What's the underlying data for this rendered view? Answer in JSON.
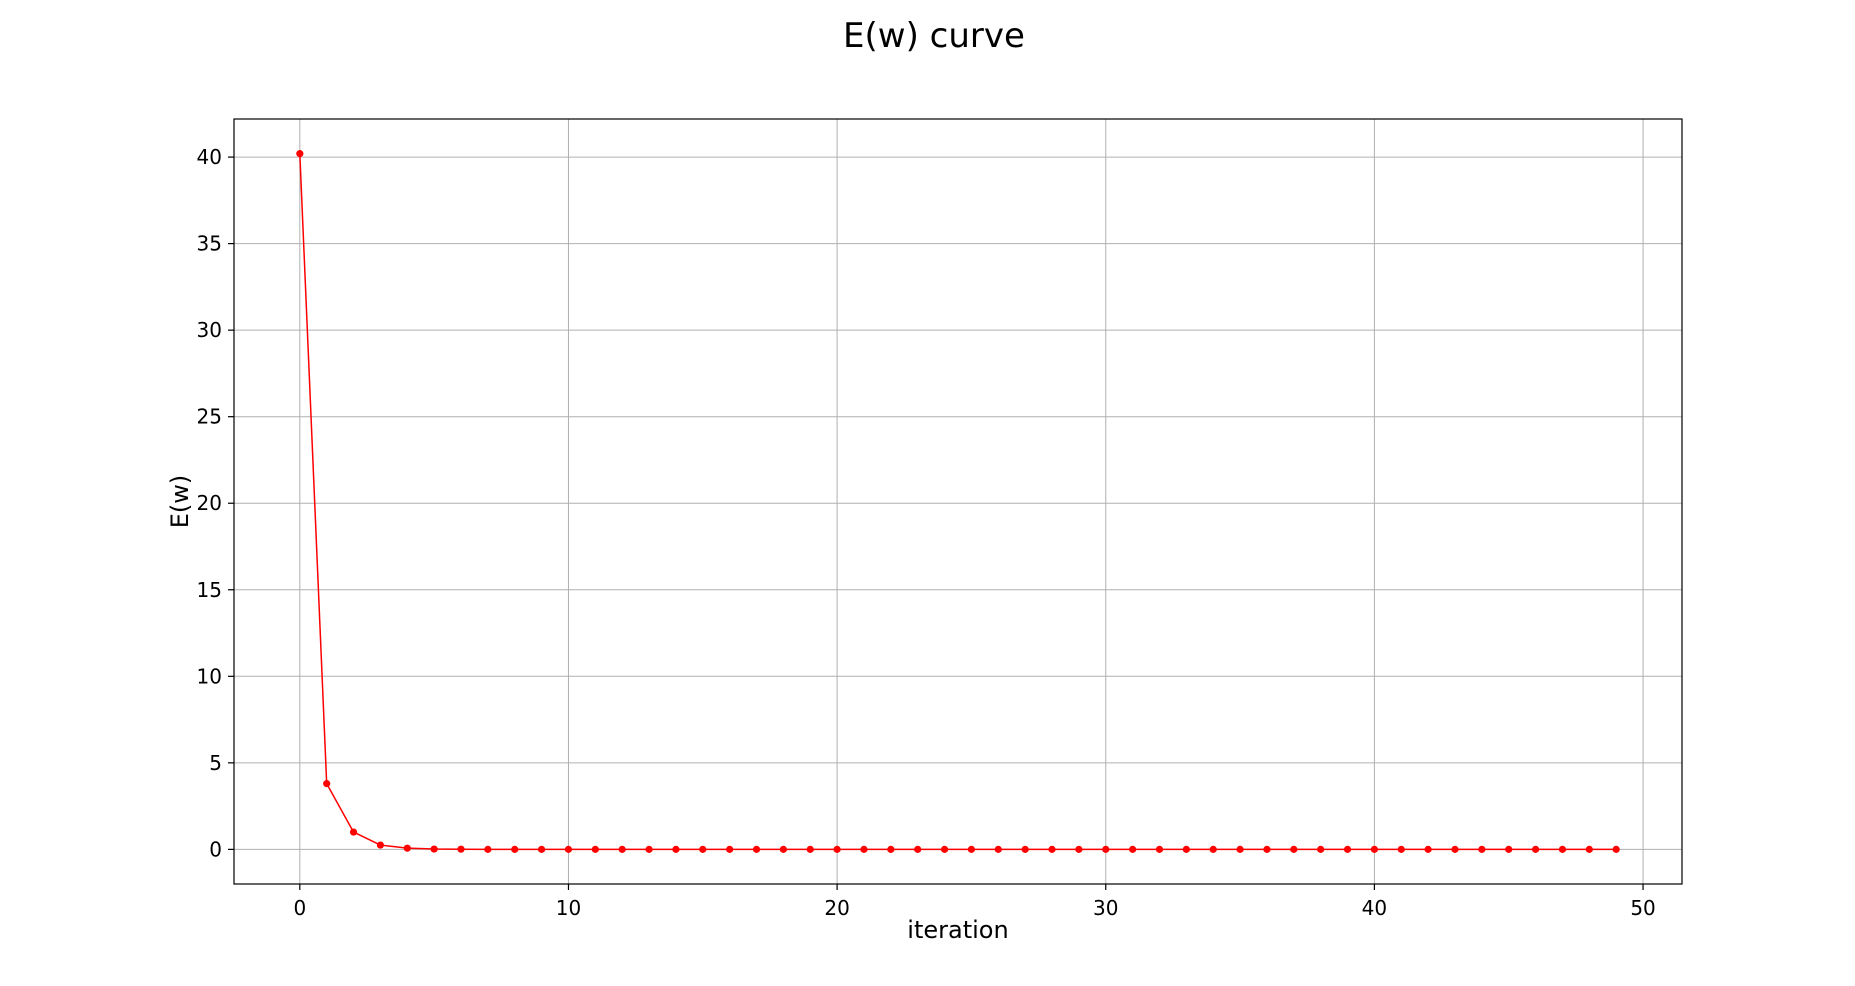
{
  "chart_data": {
    "type": "line",
    "title": "E(w) curve",
    "xlabel": "iteration",
    "ylabel": "E(w)",
    "xlim": [
      -2.45,
      51.45
    ],
    "ylim": [
      -2.0,
      42.2
    ],
    "xticks": [
      0,
      10,
      20,
      30,
      40,
      50
    ],
    "yticks": [
      0,
      5,
      10,
      15,
      20,
      25,
      30,
      35,
      40
    ],
    "grid": true,
    "legend": "none",
    "series": [
      {
        "color": "#ff0000",
        "marker": "circle",
        "x": [
          0,
          1,
          2,
          3,
          4,
          5,
          6,
          7,
          8,
          9,
          10,
          11,
          12,
          13,
          14,
          15,
          16,
          17,
          18,
          19,
          20,
          21,
          22,
          23,
          24,
          25,
          26,
          27,
          28,
          29,
          30,
          31,
          32,
          33,
          34,
          35,
          36,
          37,
          38,
          39,
          40,
          41,
          42,
          43,
          44,
          45,
          46,
          47,
          48,
          49
        ],
        "y": [
          40.2,
          3.8,
          1.0,
          0.25,
          0.07,
          0.02,
          0.01,
          0,
          0,
          0,
          0,
          0,
          0,
          0,
          0,
          0,
          0,
          0,
          0,
          0,
          0,
          0,
          0,
          0,
          0,
          0,
          0,
          0,
          0,
          0,
          0,
          0,
          0,
          0,
          0,
          0,
          0,
          0,
          0,
          0,
          0,
          0,
          0,
          0,
          0,
          0,
          0,
          0,
          0,
          0
        ]
      }
    ]
  }
}
